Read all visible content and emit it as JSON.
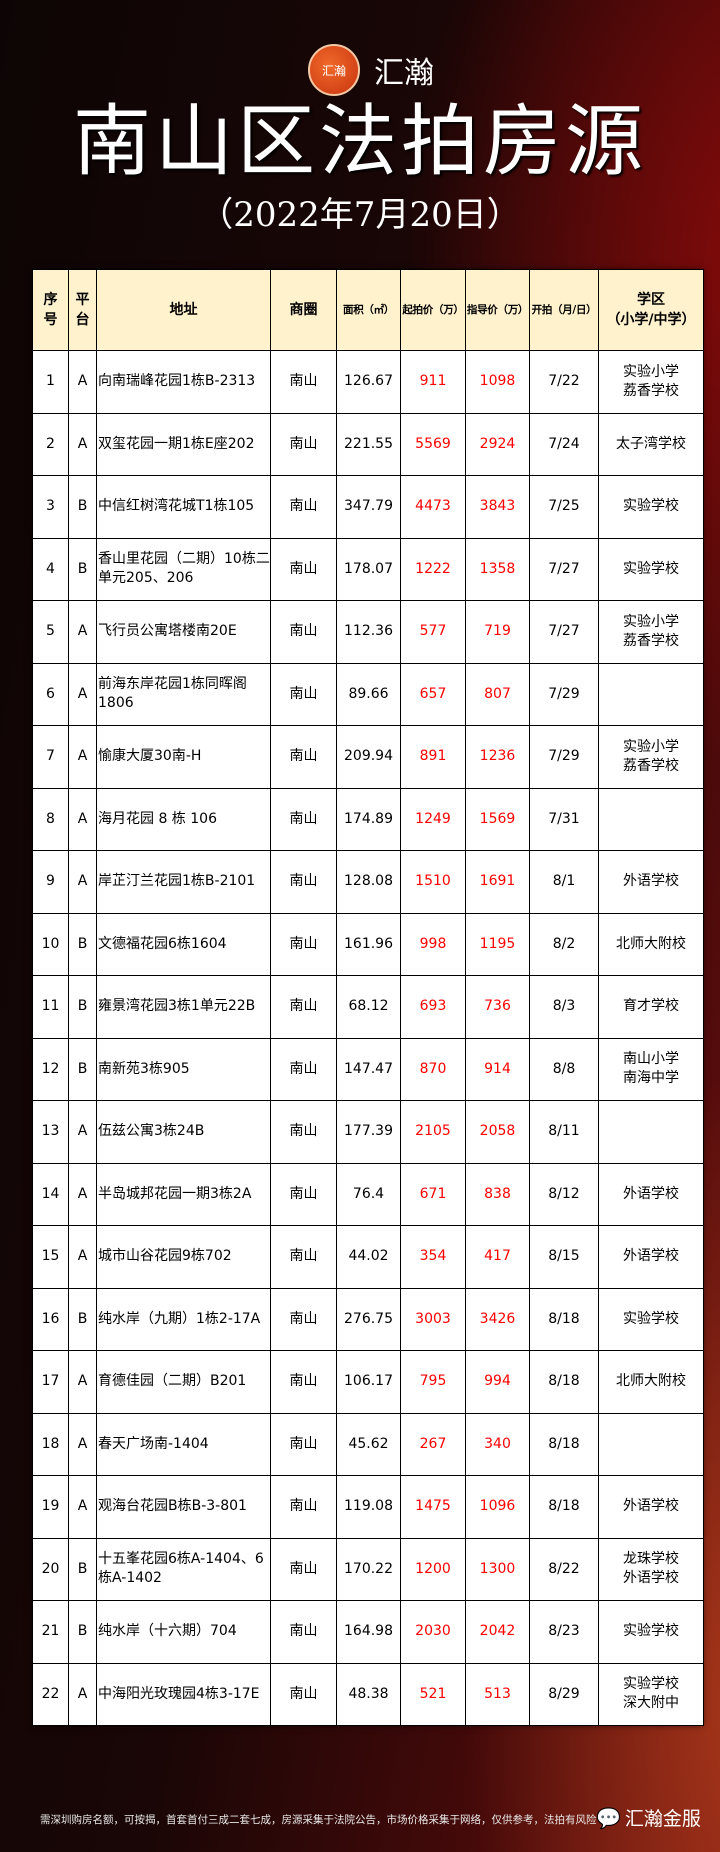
{
  "header": {
    "logo_mark": "汇瀚",
    "brand": "汇瀚",
    "title": "南山区法拍房源",
    "date": "（2022年7月20日）"
  },
  "table": {
    "columns": [
      "序号",
      "平台",
      "地址",
      "商圈",
      "面积（㎡）",
      "起拍价（万）",
      "指导价（万）",
      "开拍（月/日）",
      "学区（小学/中学）"
    ],
    "rows": [
      [
        "1",
        "A",
        "向南瑞峰花园1栋B-2313",
        "南山",
        "126.67",
        "911",
        "1098",
        "7/22",
        "实验小学\n荔香学校"
      ],
      [
        "2",
        "A",
        "双玺花园一期1栋E座202",
        "南山",
        "221.55",
        "5569",
        "2924",
        "7/24",
        "太子湾学校"
      ],
      [
        "3",
        "B",
        "中信红树湾花城T1栋105",
        "南山",
        "347.79",
        "4473",
        "3843",
        "7/25",
        "实验学校"
      ],
      [
        "4",
        "B",
        "香山里花园（二期）10栋二单元205、206",
        "南山",
        "178.07",
        "1222",
        "1358",
        "7/27",
        "实验学校"
      ],
      [
        "5",
        "A",
        "飞行员公寓塔楼南20E",
        "南山",
        "112.36",
        "577",
        "719",
        "7/27",
        "实验小学\n荔香学校"
      ],
      [
        "6",
        "A",
        "前海东岸花园1栋同晖阁1806",
        "南山",
        "89.66",
        "657",
        "807",
        "7/29",
        ""
      ],
      [
        "7",
        "A",
        "愉康大厦30南-H",
        "南山",
        "209.94",
        "891",
        "1236",
        "7/29",
        "实验小学\n荔香学校"
      ],
      [
        "8",
        "A",
        "海月花园 8 栋 106",
        "南山",
        "174.89",
        "1249",
        "1569",
        "7/31",
        ""
      ],
      [
        "9",
        "A",
        "岸芷汀兰花园1栋B-2101",
        "南山",
        "128.08",
        "1510",
        "1691",
        "8/1",
        "外语学校"
      ],
      [
        "10",
        "B",
        "文德福花园6栋1604",
        "南山",
        "161.96",
        "998",
        "1195",
        "8/2",
        "北师大附校"
      ],
      [
        "11",
        "B",
        "雍景湾花园3栋1单元22B",
        "南山",
        "68.12",
        "693",
        "736",
        "8/3",
        "育才学校"
      ],
      [
        "12",
        "B",
        "南新苑3栋905",
        "南山",
        "147.47",
        "870",
        "914",
        "8/8",
        "南山小学\n南海中学"
      ],
      [
        "13",
        "A",
        "伍兹公寓3栋24B",
        "南山",
        "177.39",
        "2105",
        "2058",
        "8/11",
        ""
      ],
      [
        "14",
        "A",
        "半岛城邦花园一期3栋2A",
        "南山",
        "76.4",
        "671",
        "838",
        "8/12",
        "外语学校"
      ],
      [
        "15",
        "A",
        "城市山谷花园9栋702",
        "南山",
        "44.02",
        "354",
        "417",
        "8/15",
        "外语学校"
      ],
      [
        "16",
        "B",
        "纯水岸（九期）1栋2-17A",
        "南山",
        "276.75",
        "3003",
        "3426",
        "8/18",
        "实验学校"
      ],
      [
        "17",
        "A",
        "育德佳园（二期）B201",
        "南山",
        "106.17",
        "795",
        "994",
        "8/18",
        "北师大附校"
      ],
      [
        "18",
        "A",
        "春天广场南-1404",
        "南山",
        "45.62",
        "267",
        "340",
        "8/18",
        ""
      ],
      [
        "19",
        "A",
        "观海台花园B栋B-3-801",
        "南山",
        "119.08",
        "1475",
        "1096",
        "8/18",
        "外语学校"
      ],
      [
        "20",
        "B",
        "十五峯花园6栋A-1404、6栋A-1402",
        "南山",
        "170.22",
        "1200",
        "1300",
        "8/22",
        "龙珠学校\n外语学校"
      ],
      [
        "21",
        "B",
        "纯水岸（十六期）704",
        "南山",
        "164.98",
        "2030",
        "2042",
        "8/23",
        "实验学校"
      ],
      [
        "22",
        "A",
        "中海阳光玫瑰园4栋3-17E",
        "南山",
        "48.38",
        "521",
        "513",
        "8/29",
        "实验学校\n深大附中"
      ]
    ]
  },
  "footer": {
    "note": "需深圳购房名额，可按揭，首套首付三成二套七成，房源采集于法院公告，市场价格采集于网络，仅供参考，法拍有风险",
    "brand": "汇瀚金服",
    "icon": "wechat-icon"
  },
  "colors": {
    "header_bg": "#fff2cc",
    "price": "#ff0000"
  }
}
